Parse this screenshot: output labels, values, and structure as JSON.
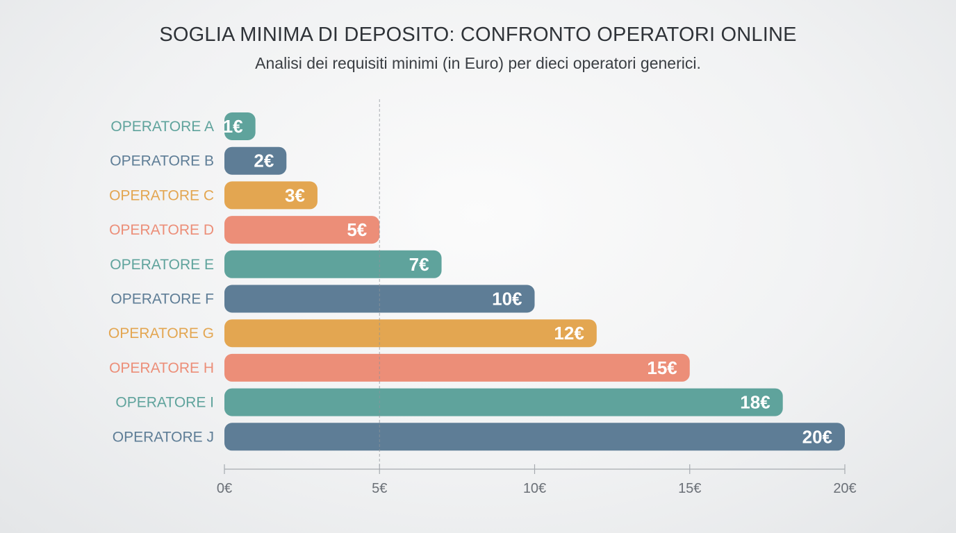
{
  "chart_data": {
    "type": "bar",
    "orientation": "horizontal",
    "title": "SOGLIA MINIMA DI DEPOSITO: CONFRONTO OPERATORI ONLINE",
    "subtitle": "Analisi dei requisiti minimi (in Euro) per dieci operatori generici.",
    "categories": [
      "OPERATORE A",
      "OPERATORE B",
      "OPERATORE C",
      "OPERATORE D",
      "OPERATORE E",
      "OPERATORE F",
      "OPERATORE G",
      "OPERATORE H",
      "OPERATORE I",
      "OPERATORE J"
    ],
    "values": [
      1,
      2,
      3,
      5,
      7,
      10,
      12,
      15,
      18,
      20
    ],
    "value_labels": [
      "1€",
      "2€",
      "3€",
      "5€",
      "7€",
      "10€",
      "12€",
      "15€",
      "18€",
      "20€"
    ],
    "colors": [
      "#5fa39c",
      "#5e7d96",
      "#e3a651",
      "#ec8e78",
      "#5fa39c",
      "#5e7d96",
      "#e3a651",
      "#ec8e78",
      "#5fa39c",
      "#5e7d96"
    ],
    "xlim": [
      0,
      20
    ],
    "xticks": [
      0,
      5,
      10,
      15,
      20
    ],
    "xtick_labels": [
      "0€",
      "5€",
      "10€",
      "15€",
      "20€"
    ],
    "reference_line": 5,
    "xlabel": "",
    "ylabel": "",
    "grid": false,
    "legend": "none"
  }
}
